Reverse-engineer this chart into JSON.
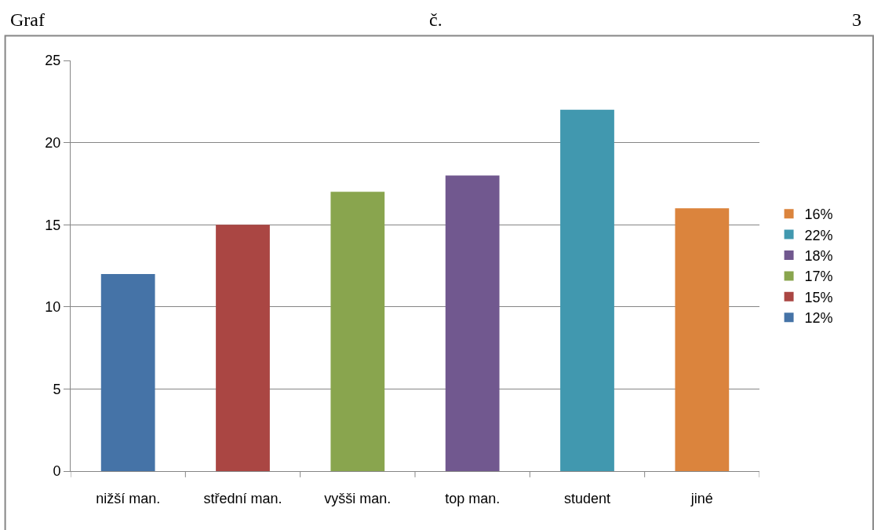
{
  "chart_data": {
    "type": "bar",
    "title": "Graf č. 3",
    "categories": [
      "nižší man.",
      "střední man.",
      "vyšši man.",
      "top man.",
      "student",
      "jiné"
    ],
    "series": [
      {
        "name": "12%",
        "color": "#4573a7",
        "values": [
          12,
          null,
          null,
          null,
          null,
          null
        ]
      },
      {
        "name": "15%",
        "color": "#aa4643",
        "values": [
          null,
          15,
          null,
          null,
          null,
          null
        ]
      },
      {
        "name": "17%",
        "color": "#89a54e",
        "values": [
          null,
          null,
          17,
          null,
          null,
          null
        ]
      },
      {
        "name": "18%",
        "color": "#71588f",
        "values": [
          null,
          null,
          null,
          18,
          null,
          null
        ]
      },
      {
        "name": "22%",
        "color": "#4198af",
        "values": [
          null,
          null,
          null,
          null,
          22,
          null
        ]
      },
      {
        "name": "16%",
        "color": "#db843d",
        "values": [
          null,
          null,
          null,
          null,
          null,
          16
        ]
      }
    ],
    "ylim": [
      0,
      25
    ],
    "yticks": [
      0,
      5,
      10,
      15,
      20,
      25
    ],
    "grid": "y",
    "legend": "right"
  }
}
